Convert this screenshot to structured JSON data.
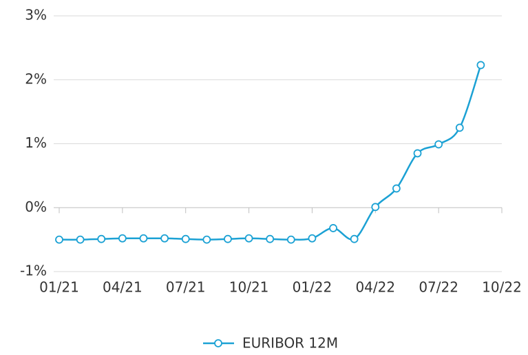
{
  "chart_data": {
    "type": "line",
    "categories": [
      "01/21",
      null,
      null,
      "04/21",
      null,
      null,
      "07/21",
      null,
      null,
      "10/21",
      null,
      null,
      "01/22",
      null,
      null,
      "04/22",
      null,
      null,
      "07/22",
      null,
      null,
      "10/22"
    ],
    "series": [
      {
        "name": "EURIBOR 12M",
        "color": "#1ba1d4",
        "values": [
          -0.5,
          -0.5,
          -0.49,
          -0.48,
          -0.48,
          -0.48,
          -0.49,
          -0.5,
          -0.49,
          -0.48,
          -0.49,
          -0.5,
          -0.48,
          -0.32,
          -0.49,
          0.01,
          0.3,
          0.85,
          0.99,
          1.25,
          2.23,
          null
        ]
      }
    ],
    "ylim": [
      -1,
      3
    ],
    "yticks": [
      {
        "value": -1,
        "label": "-1%"
      },
      {
        "value": 0,
        "label": "0%"
      },
      {
        "value": 1,
        "label": "1%"
      },
      {
        "value": 2,
        "label": "2%"
      },
      {
        "value": 3,
        "label": "3%"
      }
    ],
    "grid": true,
    "legend": "bottom"
  }
}
